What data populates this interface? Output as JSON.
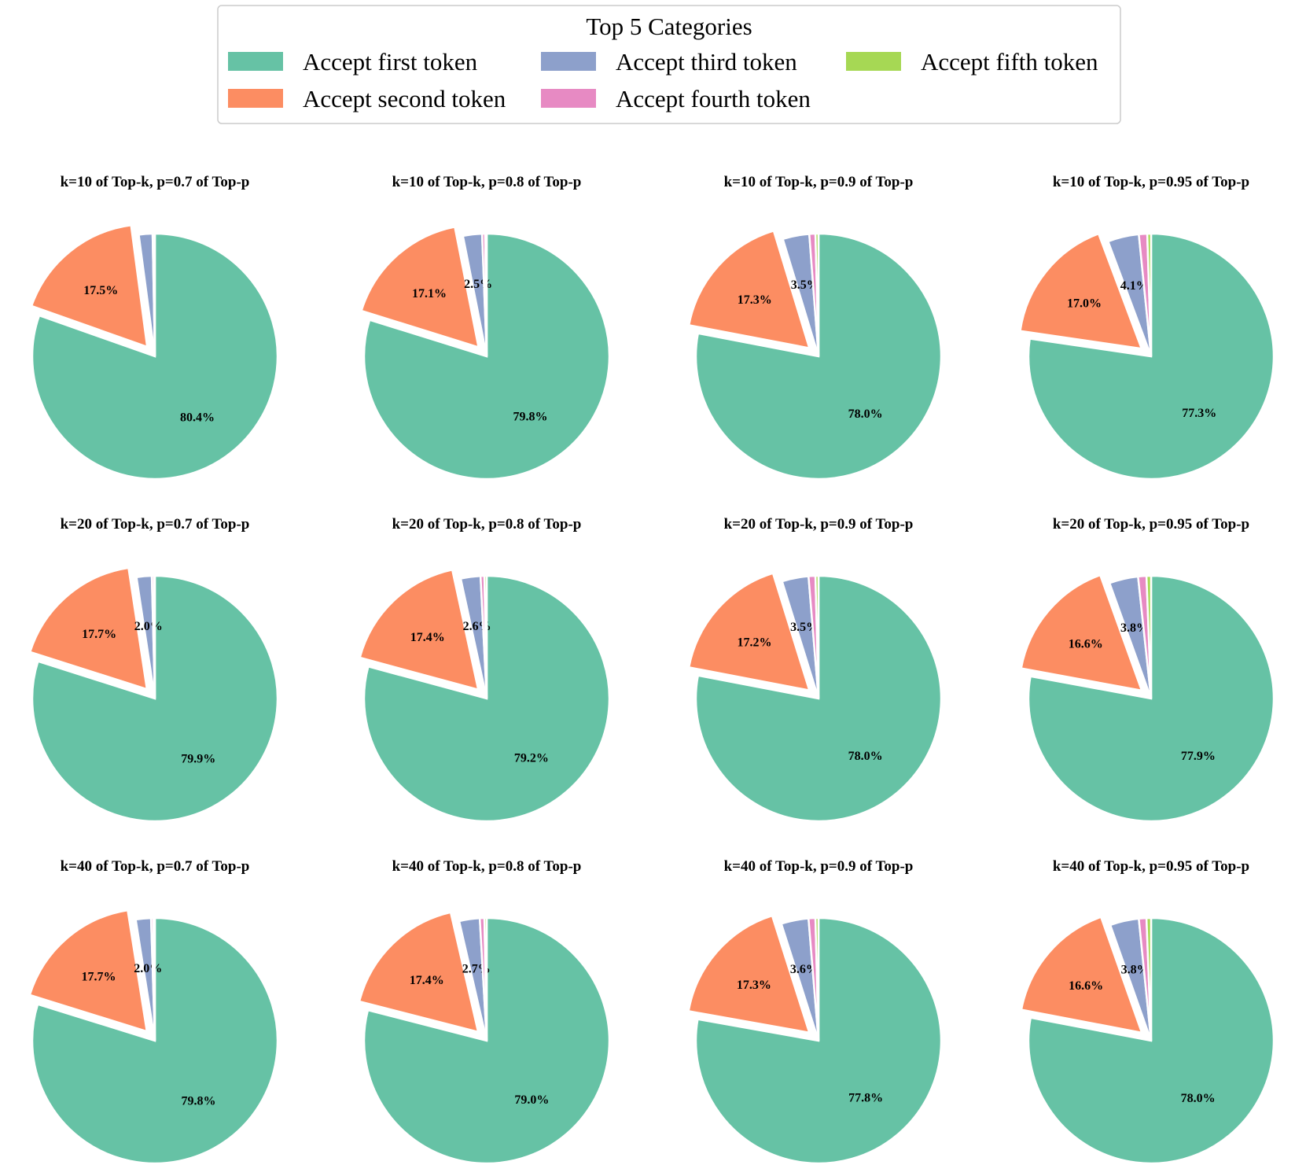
{
  "chart_data": {
    "type": "pie",
    "legend": {
      "title": "Top 5 Categories",
      "placement": "top-center",
      "entries": [
        {
          "label": "Accept first token",
          "color": "#66c2a5"
        },
        {
          "label": "Accept second token",
          "color": "#fc8d62"
        },
        {
          "label": "Accept third token",
          "color": "#8da0cb"
        },
        {
          "label": "Accept fourth token",
          "color": "#e78ac3"
        },
        {
          "label": "Accept fifth token",
          "color": "#a6d854"
        }
      ]
    },
    "categories": [
      "Accept first token",
      "Accept second token",
      "Accept third token",
      "Accept fourth token",
      "Accept fifth token"
    ],
    "charts": [
      {
        "title": "k=10 of Top-k, p=0.7 of Top-p",
        "values": [
          80.4,
          17.5,
          1.8,
          0.2,
          0.1
        ],
        "labels": [
          "80.4%",
          "17.5%",
          "",
          "",
          ""
        ]
      },
      {
        "title": "k=10 of Top-k, p=0.8 of Top-p",
        "values": [
          79.8,
          17.1,
          2.5,
          0.4,
          0.2
        ],
        "labels": [
          "79.8%",
          "17.1%",
          "2.5%",
          "",
          ""
        ]
      },
      {
        "title": "k=10 of Top-k, p=0.9 of Top-p",
        "values": [
          78.0,
          17.3,
          3.5,
          0.8,
          0.4
        ],
        "labels": [
          "78.0%",
          "17.3%",
          "3.5%",
          "",
          ""
        ]
      },
      {
        "title": "k=10 of Top-k, p=0.95 of Top-p",
        "values": [
          77.3,
          17.0,
          4.1,
          1.1,
          0.5
        ],
        "labels": [
          "77.3%",
          "17.0%",
          "4.1%",
          "",
          ""
        ]
      },
      {
        "title": "k=20 of Top-k, p=0.7 of Top-p",
        "values": [
          79.9,
          17.7,
          2.0,
          0.3,
          0.1
        ],
        "labels": [
          "79.9%",
          "17.7%",
          "2.0%",
          "",
          ""
        ]
      },
      {
        "title": "k=20 of Top-k, p=0.8 of Top-p",
        "values": [
          79.2,
          17.4,
          2.6,
          0.5,
          0.3
        ],
        "labels": [
          "79.2%",
          "17.4%",
          "2.6%",
          "",
          ""
        ]
      },
      {
        "title": "k=20 of Top-k, p=0.9 of Top-p",
        "values": [
          78.0,
          17.2,
          3.5,
          0.9,
          0.4
        ],
        "labels": [
          "78.0%",
          "17.2%",
          "3.5%",
          "",
          ""
        ]
      },
      {
        "title": "k=20 of Top-k, p=0.95 of Top-p",
        "values": [
          77.9,
          16.6,
          3.8,
          1.1,
          0.6
        ],
        "labels": [
          "77.9%",
          "16.6%",
          "3.8%",
          "",
          ""
        ]
      },
      {
        "title": "k=40 of Top-k, p=0.7 of Top-p",
        "values": [
          79.8,
          17.7,
          2.0,
          0.3,
          0.2
        ],
        "labels": [
          "79.8%",
          "17.7%",
          "2.0%",
          "",
          ""
        ]
      },
      {
        "title": "k=40 of Top-k, p=0.8 of Top-p",
        "values": [
          79.0,
          17.4,
          2.7,
          0.6,
          0.3
        ],
        "labels": [
          "79.0%",
          "17.4%",
          "2.7%",
          "",
          ""
        ]
      },
      {
        "title": "k=40 of Top-k, p=0.9 of Top-p",
        "values": [
          77.8,
          17.3,
          3.6,
          0.9,
          0.4
        ],
        "labels": [
          "77.8%",
          "17.3%",
          "3.6%",
          "",
          ""
        ]
      },
      {
        "title": "k=40 of Top-k, p=0.95 of Top-p",
        "values": [
          78.0,
          16.6,
          3.8,
          1.0,
          0.6
        ],
        "labels": [
          "78.0%",
          "16.6%",
          "3.8%",
          "",
          ""
        ]
      }
    ]
  }
}
